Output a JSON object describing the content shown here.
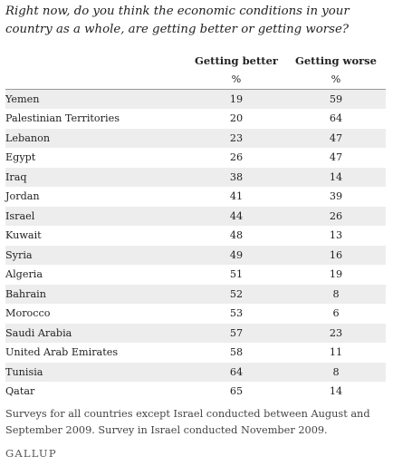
{
  "question": "Right now, do you think the economic conditions in your country as a whole, are getting better or getting worse?",
  "chart_data": {
    "type": "table",
    "columns": [
      "Getting better",
      "Getting worse"
    ],
    "units": "%",
    "rows": [
      {
        "country": "Yemen",
        "better": 19,
        "worse": 59
      },
      {
        "country": "Palestinian Territories",
        "better": 20,
        "worse": 64
      },
      {
        "country": "Lebanon",
        "better": 23,
        "worse": 47
      },
      {
        "country": "Egypt",
        "better": 26,
        "worse": 47
      },
      {
        "country": "Iraq",
        "better": 38,
        "worse": 14
      },
      {
        "country": "Jordan",
        "better": 41,
        "worse": 39
      },
      {
        "country": "Israel",
        "better": 44,
        "worse": 26
      },
      {
        "country": "Kuwait",
        "better": 48,
        "worse": 13
      },
      {
        "country": "Syria",
        "better": 49,
        "worse": 16
      },
      {
        "country": "Algeria",
        "better": 51,
        "worse": 19
      },
      {
        "country": "Bahrain",
        "better": 52,
        "worse": 8
      },
      {
        "country": "Morocco",
        "better": 53,
        "worse": 6
      },
      {
        "country": "Saudi Arabia",
        "better": 57,
        "worse": 23
      },
      {
        "country": "United Arab Emirates",
        "better": 58,
        "worse": 11
      },
      {
        "country": "Tunisia",
        "better": 64,
        "worse": 8
      },
      {
        "country": "Qatar",
        "better": 65,
        "worse": 14
      }
    ]
  },
  "footnote": "Surveys for all countries except Israel conducted between August and September 2009. Survey in Israel conducted November 2009.",
  "logo": "GALLUP"
}
